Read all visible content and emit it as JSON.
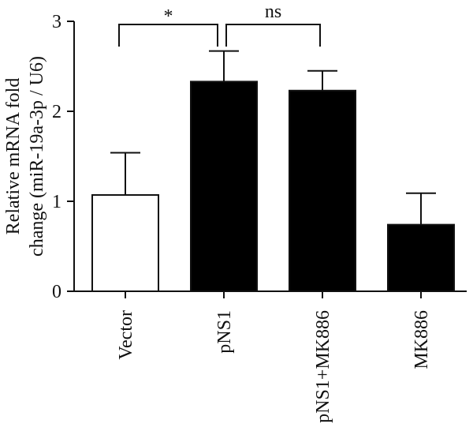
{
  "chart_data": {
    "type": "bar",
    "categories": [
      "Vector",
      "pNS1",
      "pNS1+MK886",
      "MK886"
    ],
    "values": [
      1.07,
      2.33,
      2.23,
      0.74
    ],
    "errors": [
      0.47,
      0.34,
      0.22,
      0.35
    ],
    "bar_fills": [
      "#ffffff",
      "#000000",
      "#000000",
      "#000000"
    ],
    "ylabel_line1": "Relative mRNA fold",
    "ylabel_line2": "change (miR-19a-3p / U6)",
    "ylim": [
      0,
      3
    ],
    "yticks": [
      "0",
      "1",
      "2",
      "3"
    ],
    "grid": false,
    "legend": "none",
    "significance": [
      {
        "from": "Vector",
        "to": "pNS1",
        "label": "*"
      },
      {
        "from": "pNS1",
        "to": "pNS1+MK886",
        "label": "ns"
      }
    ]
  }
}
